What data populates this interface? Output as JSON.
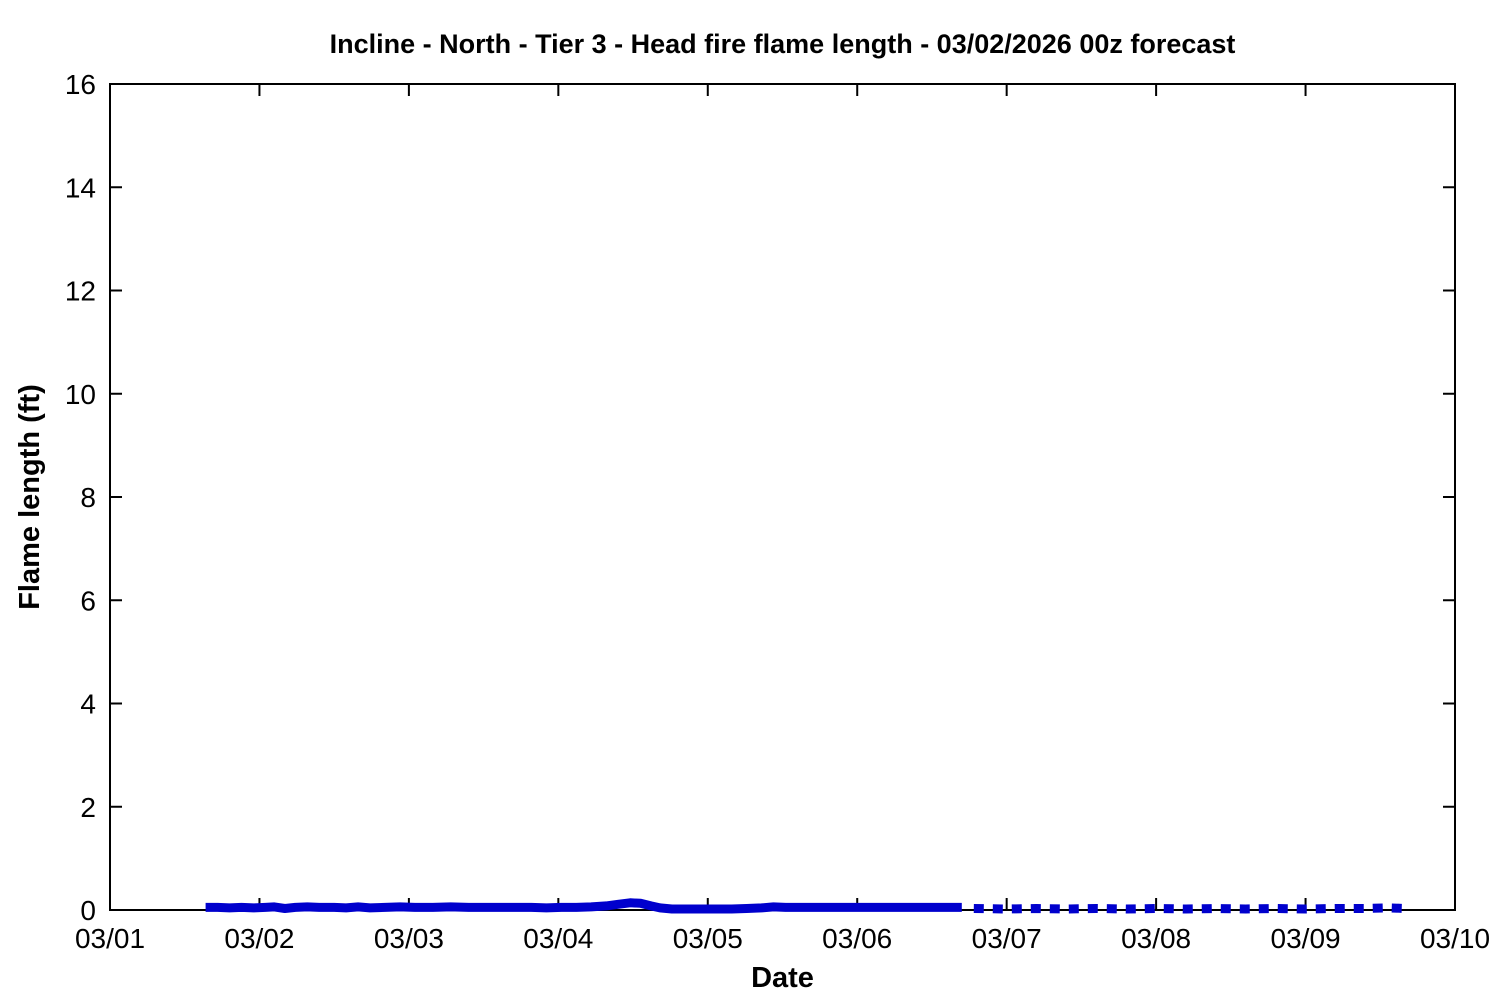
{
  "chart_data": {
    "type": "line",
    "title": "Incline - North - Tier 3 - Head fire flame length - 03/02/2026 00z forecast",
    "xlabel": "Date",
    "ylabel": "Flame length (ft)",
    "x_tick_labels": [
      "03/01",
      "03/02",
      "03/03",
      "03/04",
      "03/05",
      "03/06",
      "03/07",
      "03/08",
      "03/09",
      "03/10"
    ],
    "x_tick_days": [
      0,
      1,
      2,
      3,
      4,
      5,
      6,
      7,
      8,
      9
    ],
    "y_ticks": [
      0,
      2,
      4,
      6,
      8,
      10,
      12,
      14,
      16
    ],
    "xlim_days": [
      0,
      9
    ],
    "ylim": [
      0,
      16
    ],
    "grid": false,
    "legend": "none",
    "line_color": "#0000cd",
    "line_width": 9,
    "border_color": "#000000",
    "series": [
      {
        "name": "head-fire-flame-length-forecast-solid",
        "style": "solid",
        "points": [
          [
            0.64,
            0.05
          ],
          [
            0.72,
            0.05
          ],
          [
            0.8,
            0.04
          ],
          [
            0.88,
            0.05
          ],
          [
            0.96,
            0.04
          ],
          [
            1.04,
            0.05
          ],
          [
            1.1,
            0.06
          ],
          [
            1.17,
            0.03
          ],
          [
            1.24,
            0.05
          ],
          [
            1.32,
            0.06
          ],
          [
            1.4,
            0.05
          ],
          [
            1.5,
            0.05
          ],
          [
            1.58,
            0.04
          ],
          [
            1.66,
            0.06
          ],
          [
            1.74,
            0.04
          ],
          [
            1.84,
            0.05
          ],
          [
            1.94,
            0.06
          ],
          [
            2.04,
            0.05
          ],
          [
            2.16,
            0.05
          ],
          [
            2.28,
            0.06
          ],
          [
            2.4,
            0.05
          ],
          [
            2.55,
            0.05
          ],
          [
            2.7,
            0.05
          ],
          [
            2.82,
            0.05
          ],
          [
            2.92,
            0.04
          ],
          [
            3.02,
            0.05
          ],
          [
            3.12,
            0.05
          ],
          [
            3.22,
            0.06
          ],
          [
            3.32,
            0.08
          ],
          [
            3.4,
            0.11
          ],
          [
            3.48,
            0.14
          ],
          [
            3.55,
            0.13
          ],
          [
            3.62,
            0.08
          ],
          [
            3.68,
            0.04
          ],
          [
            3.76,
            0.02
          ],
          [
            3.86,
            0.02
          ],
          [
            3.96,
            0.02
          ],
          [
            4.06,
            0.02
          ],
          [
            4.16,
            0.02
          ],
          [
            4.26,
            0.03
          ],
          [
            4.36,
            0.04
          ],
          [
            4.44,
            0.06
          ],
          [
            4.52,
            0.05
          ],
          [
            4.62,
            0.05
          ],
          [
            4.72,
            0.05
          ],
          [
            4.82,
            0.05
          ],
          [
            4.92,
            0.05
          ],
          [
            5.02,
            0.05
          ],
          [
            5.14,
            0.05
          ],
          [
            5.26,
            0.05
          ],
          [
            5.38,
            0.05
          ],
          [
            5.5,
            0.05
          ],
          [
            5.6,
            0.05
          ],
          [
            5.7,
            0.05
          ]
        ]
      },
      {
        "name": "head-fire-flame-length-extended-dotted",
        "style": "dotted",
        "points": [
          [
            5.78,
            0.03
          ],
          [
            6.0,
            0.02
          ],
          [
            6.2,
            0.03
          ],
          [
            6.4,
            0.02
          ],
          [
            6.6,
            0.03
          ],
          [
            6.8,
            0.02
          ],
          [
            7.0,
            0.03
          ],
          [
            7.2,
            0.02
          ],
          [
            7.4,
            0.03
          ],
          [
            7.6,
            0.02
          ],
          [
            7.8,
            0.03
          ],
          [
            8.0,
            0.02
          ],
          [
            8.2,
            0.03
          ],
          [
            8.4,
            0.03
          ],
          [
            8.55,
            0.04
          ],
          [
            8.68,
            0.03
          ]
        ]
      }
    ]
  }
}
